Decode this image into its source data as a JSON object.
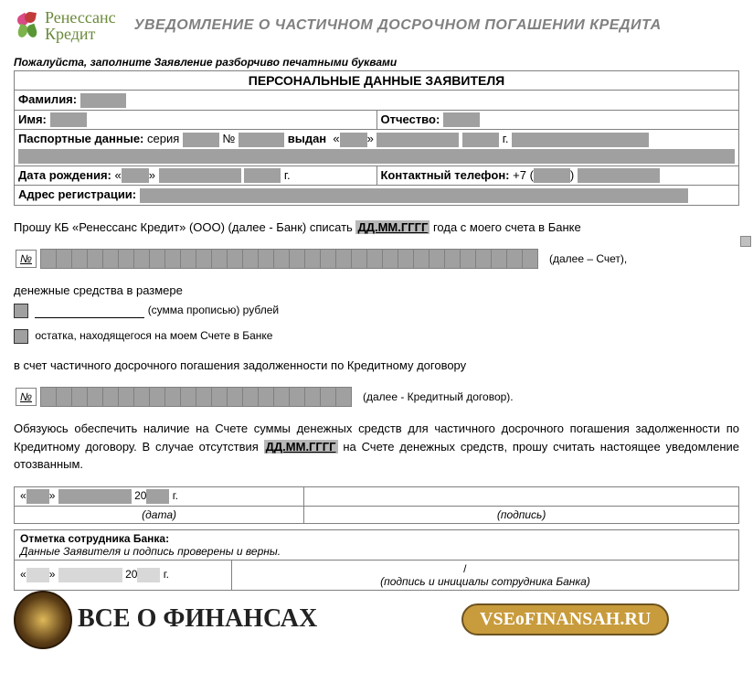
{
  "logo": {
    "line1": "Ренессанс",
    "line2": "Кредит"
  },
  "title": "УВЕДОМЛЕНИЕ О  ЧАСТИЧНОМ ДОСРОЧНОМ ПОГАШЕНИИ КРЕДИТА",
  "instruction": "Пожалуйста, заполните Заявление разборчиво печатными буквами",
  "section_header": "ПЕРСОНАЛЬНЫЕ ДАННЫЕ ЗАЯВИТЕЛЯ",
  "labels": {
    "surname": "Фамилия:",
    "name": "Имя:",
    "patronymic": "Отчество:",
    "passport": "Паспортные данные:",
    "series": "серия",
    "num": "№",
    "issued": "выдан",
    "dob": "Дата рождения:",
    "phone": "Контактный телефон:",
    "phone_prefix": "+7",
    "address": "Адрес регистрации:",
    "year_suffix": "г."
  },
  "body": {
    "p1_a": "Прошу КБ «Ренессанс Кредит» (ООО) (далее - Банк) списать ",
    "date_ph": "ДД.ММ.ГГГГ",
    "p1_b": " года с моего счета в Банке",
    "acc_num": "№",
    "after_acc": "(далее – Счет),",
    "p2": "денежные средства в размере",
    "sum_words": "(сумма прописью) рублей",
    "opt2": "остатка, находящегося на моем Счете  в Банке",
    "p3": "в счет частичного досрочного погашения задолженности по Кредитному договору",
    "after_credit": "(далее - Кредитный договор).",
    "p4_a": "Обязуюсь обеспечить наличие на Счете суммы денежных средств для частичного досрочного погашения задолженности по Кредитному договору. В случае отсутствия ",
    "p4_b": " на Счете денежных средств, прошу считать настоящее уведомление отозванным."
  },
  "sig": {
    "date_open": "«",
    "date_close": "»",
    "year20": "20",
    "year_g": "г.",
    "date_lbl": "(дата)",
    "sign_lbl": "(подпись)"
  },
  "staff": {
    "header": "Отметка сотрудника Банка:",
    "verified": "Данные Заявителя и подпись проверены и верны.",
    "sign_lbl": "(подпись и инициалы сотрудника Банка)",
    "slash": "/"
  },
  "watermark": {
    "text": "ВСЕ О ФИНАНСАХ",
    "pill": "VSEoFINANSAH.RU"
  },
  "cells": {
    "account": 32,
    "credit": 20
  },
  "colors": {
    "grey_fill": "#a0a0a0",
    "border": "#808080",
    "title_grey": "#808080",
    "logo_green": "#6a8a3a",
    "highlight": "#b8b8b8",
    "pill_bg": "#c89b3c",
    "pill_border": "#6b5220"
  }
}
